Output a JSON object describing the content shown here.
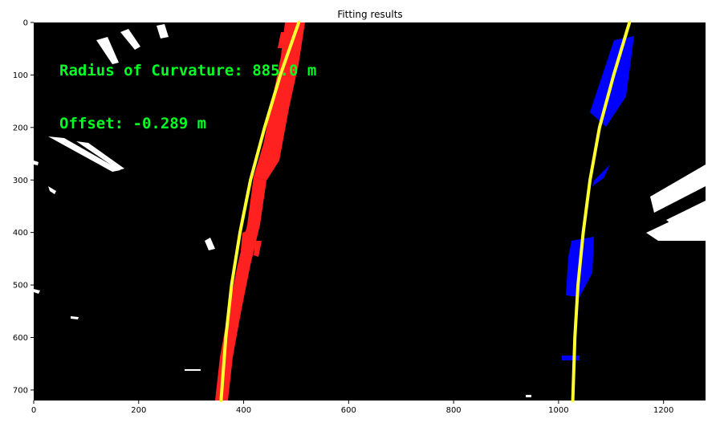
{
  "chart_data": {
    "type": "image",
    "title": "Fitting results",
    "xlim": [
      0,
      1280
    ],
    "ylim": [
      720,
      0
    ],
    "x_ticks": [
      0,
      200,
      400,
      600,
      800,
      1000,
      1200
    ],
    "y_ticks": [
      0,
      100,
      200,
      300,
      400,
      500,
      600,
      700
    ],
    "grid": false,
    "annotations": [
      {
        "text": "Radius of Curvature: 885.0 m",
        "x": 50,
        "y": 100,
        "color": "#00ff22"
      },
      {
        "text": "Offset: -0.289 m",
        "x": 50,
        "y": 200,
        "color": "#00ff22"
      }
    ],
    "series": [
      {
        "kind": "pixels",
        "color": "#ff2020"
      },
      {
        "kind": "pixels",
        "color": "#0000ff"
      },
      {
        "kind": "fit",
        "color": "#ffff30",
        "y": [
          0,
          100,
          200,
          300,
          400,
          500,
          600,
          720
        ],
        "x": [
          505,
          470,
          440,
          413,
          393,
          377,
          366,
          357
        ]
      },
      {
        "kind": "fit",
        "color": "#ffff30",
        "y": [
          0,
          100,
          200,
          300,
          400,
          500,
          600,
          720
        ],
        "x": [
          1135,
          1105,
          1078,
          1060,
          1047,
          1037,
          1031,
          1027
        ]
      }
    ],
    "colors": {
      "background": "#000000",
      "noise": "#ffffff"
    }
  }
}
